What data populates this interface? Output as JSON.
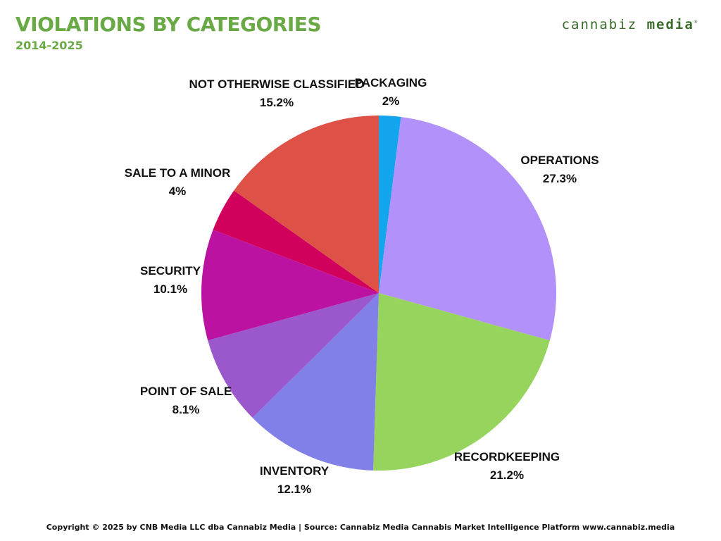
{
  "header": {
    "title": "VIOLATIONS BY CATEGORIES",
    "subtitle": "2014-2025",
    "logo_left": "cannabiz",
    "logo_right": "media",
    "logo_mark": "®"
  },
  "footer": {
    "text": "Copyright © 2025 by CNB Media LLC dba Cannabiz Media | Source: Cannabiz Media Cannabis Market Intelligence Platform www.cannabiz.media"
  },
  "chart_data": {
    "type": "pie",
    "title": "VIOLATIONS BY CATEGORIES",
    "subtitle": "2014-2025",
    "start_angle_deg": 0,
    "direction": "clockwise",
    "slices": [
      {
        "label": "PACKAGING",
        "value_text": "2%",
        "value": 2.0,
        "color": "#14a5ef"
      },
      {
        "label": "OPERATIONS",
        "value_text": "27.3%",
        "value": 27.3,
        "color": "#b291fb"
      },
      {
        "label": "RECORDKEEPING",
        "value_text": "21.2%",
        "value": 21.2,
        "color": "#96d45d"
      },
      {
        "label": "INVENTORY",
        "value_text": "12.1%",
        "value": 12.1,
        "color": "#8080e8"
      },
      {
        "label": "POINT OF SALE",
        "value_text": "8.1%",
        "value": 8.1,
        "color": "#9a58cc"
      },
      {
        "label": "SECURITY",
        "value_text": "10.1%",
        "value": 10.1,
        "color": "#bb12a2"
      },
      {
        "label": "SALE TO A MINOR",
        "value_text": "4%",
        "value": 4.0,
        "color": "#d0005c"
      },
      {
        "label": "NOT OTHERWISE CLASSIFIED",
        "value_text": "15.2%",
        "value": 15.2,
        "color": "#de5146"
      }
    ]
  }
}
